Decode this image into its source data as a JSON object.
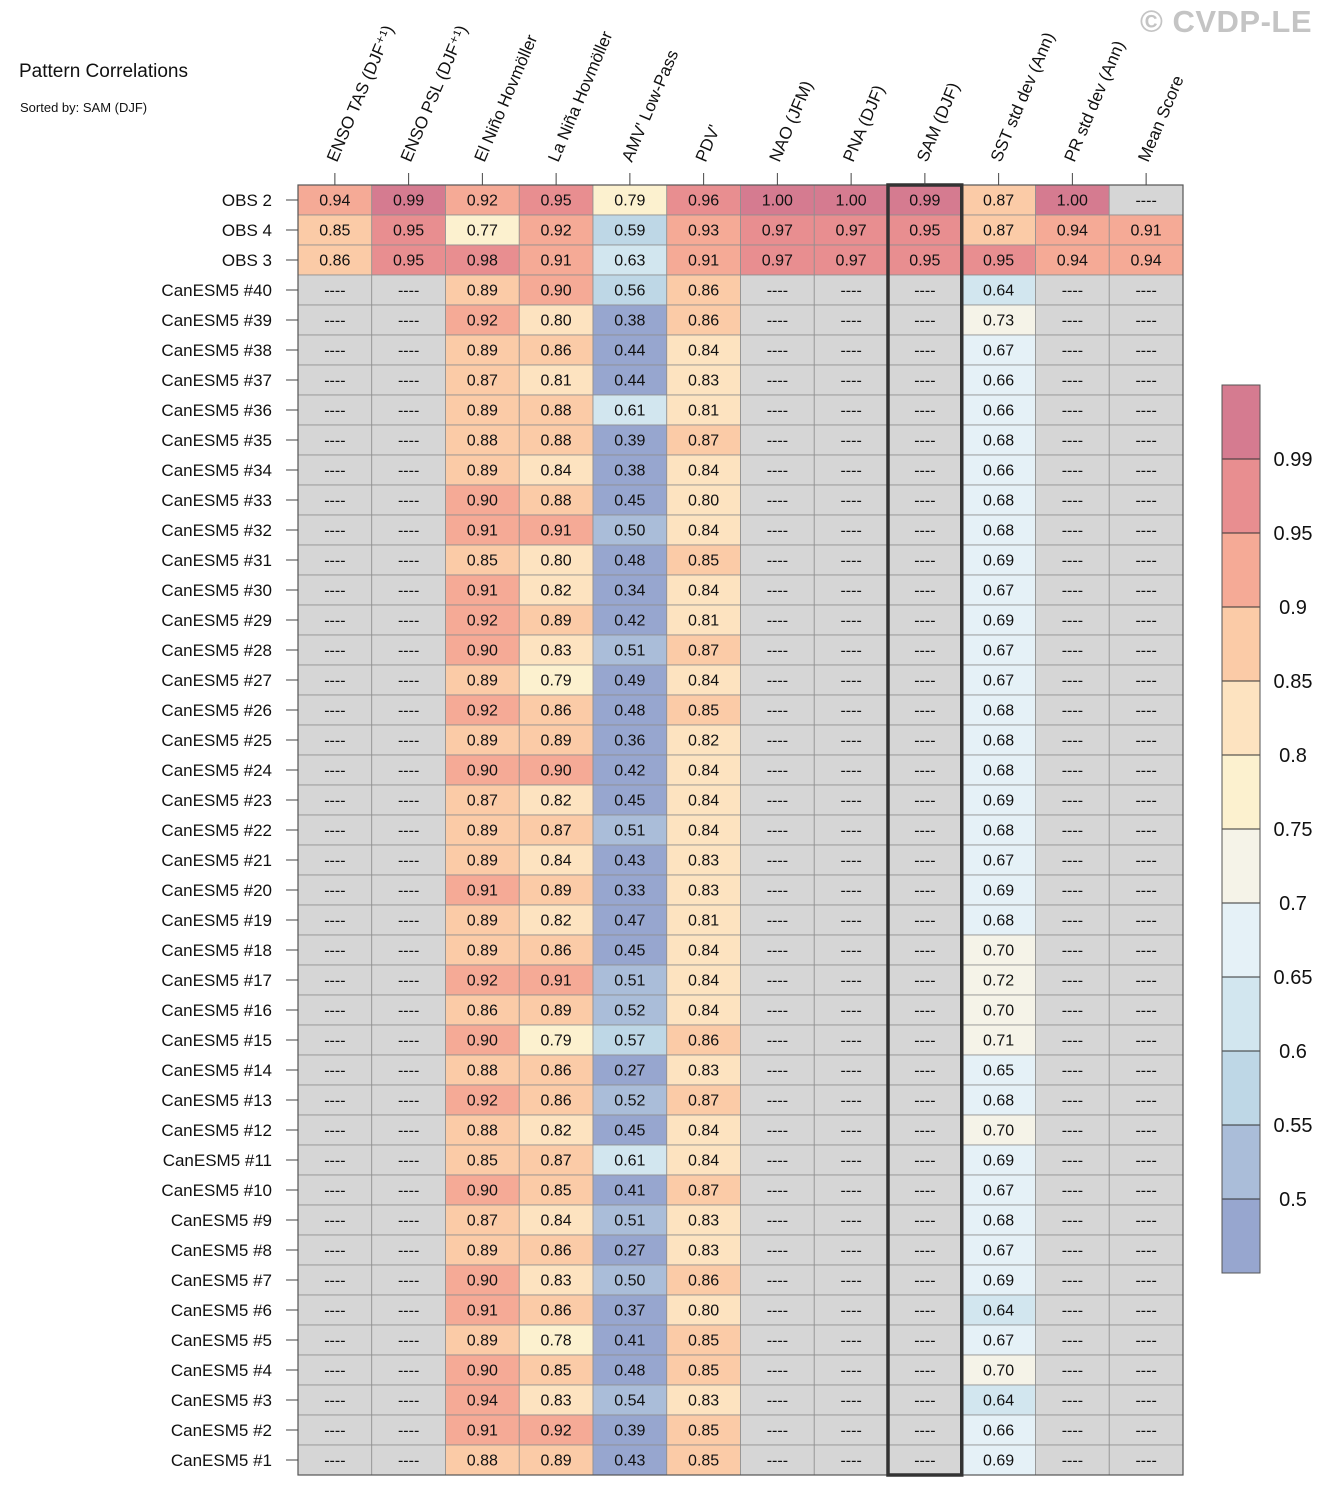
{
  "watermark": "© CVDP-LE",
  "chart_data": {
    "type": "heatmap",
    "title": "Pattern Correlations",
    "subtitle": "Sorted by: SAM (DJF)",
    "highlight_column": "SAM (DJF)",
    "columns": [
      "ENSO TAS (DJF⁺¹)",
      "ENSO PSL (DJF⁺¹)",
      "El Niño Hovmöller",
      "La Niña Hovmöller",
      "AMV' Low-Pass",
      "PDV'",
      "NAO (JFM)",
      "PNA (DJF)",
      "SAM (DJF)",
      "SST std dev (Ann)",
      "PR std dev (Ann)",
      "Mean Score"
    ],
    "rows": [
      "OBS 2",
      "OBS 4",
      "OBS 3",
      "CanESM5 #40",
      "CanESM5 #39",
      "CanESM5 #38",
      "CanESM5 #37",
      "CanESM5 #36",
      "CanESM5 #35",
      "CanESM5 #34",
      "CanESM5 #33",
      "CanESM5 #32",
      "CanESM5 #31",
      "CanESM5 #30",
      "CanESM5 #29",
      "CanESM5 #28",
      "CanESM5 #27",
      "CanESM5 #26",
      "CanESM5 #25",
      "CanESM5 #24",
      "CanESM5 #23",
      "CanESM5 #22",
      "CanESM5 #21",
      "CanESM5 #20",
      "CanESM5 #19",
      "CanESM5 #18",
      "CanESM5 #17",
      "CanESM5 #16",
      "CanESM5 #15",
      "CanESM5 #14",
      "CanESM5 #13",
      "CanESM5 #12",
      "CanESM5 #11",
      "CanESM5 #10",
      "CanESM5 #9",
      "CanESM5 #8",
      "CanESM5 #7",
      "CanESM5 #6",
      "CanESM5 #5",
      "CanESM5 #4",
      "CanESM5 #3",
      "CanESM5 #2",
      "CanESM5 #1"
    ],
    "missing_label": "----",
    "values": [
      [
        0.94,
        0.99,
        0.92,
        0.95,
        0.79,
        0.96,
        1.0,
        1.0,
        0.99,
        0.87,
        1.0,
        null
      ],
      [
        0.85,
        0.95,
        0.77,
        0.92,
        0.59,
        0.93,
        0.97,
        0.97,
        0.95,
        0.87,
        0.94,
        0.91
      ],
      [
        0.86,
        0.95,
        0.98,
        0.91,
        0.63,
        0.91,
        0.97,
        0.97,
        0.95,
        0.95,
        0.94,
        0.94
      ],
      [
        null,
        null,
        0.89,
        0.9,
        0.56,
        0.86,
        null,
        null,
        null,
        0.64,
        null,
        null
      ],
      [
        null,
        null,
        0.92,
        0.8,
        0.38,
        0.86,
        null,
        null,
        null,
        0.73,
        null,
        null
      ],
      [
        null,
        null,
        0.89,
        0.86,
        0.44,
        0.84,
        null,
        null,
        null,
        0.67,
        null,
        null
      ],
      [
        null,
        null,
        0.87,
        0.81,
        0.44,
        0.83,
        null,
        null,
        null,
        0.66,
        null,
        null
      ],
      [
        null,
        null,
        0.89,
        0.88,
        0.61,
        0.81,
        null,
        null,
        null,
        0.66,
        null,
        null
      ],
      [
        null,
        null,
        0.88,
        0.88,
        0.39,
        0.87,
        null,
        null,
        null,
        0.68,
        null,
        null
      ],
      [
        null,
        null,
        0.89,
        0.84,
        0.38,
        0.84,
        null,
        null,
        null,
        0.66,
        null,
        null
      ],
      [
        null,
        null,
        0.9,
        0.88,
        0.45,
        0.8,
        null,
        null,
        null,
        0.68,
        null,
        null
      ],
      [
        null,
        null,
        0.91,
        0.91,
        0.5,
        0.84,
        null,
        null,
        null,
        0.68,
        null,
        null
      ],
      [
        null,
        null,
        0.85,
        0.8,
        0.48,
        0.85,
        null,
        null,
        null,
        0.69,
        null,
        null
      ],
      [
        null,
        null,
        0.91,
        0.82,
        0.34,
        0.84,
        null,
        null,
        null,
        0.67,
        null,
        null
      ],
      [
        null,
        null,
        0.92,
        0.89,
        0.42,
        0.81,
        null,
        null,
        null,
        0.69,
        null,
        null
      ],
      [
        null,
        null,
        0.9,
        0.83,
        0.51,
        0.87,
        null,
        null,
        null,
        0.67,
        null,
        null
      ],
      [
        null,
        null,
        0.89,
        0.79,
        0.49,
        0.84,
        null,
        null,
        null,
        0.67,
        null,
        null
      ],
      [
        null,
        null,
        0.92,
        0.86,
        0.48,
        0.85,
        null,
        null,
        null,
        0.68,
        null,
        null
      ],
      [
        null,
        null,
        0.89,
        0.89,
        0.36,
        0.82,
        null,
        null,
        null,
        0.68,
        null,
        null
      ],
      [
        null,
        null,
        0.9,
        0.9,
        0.42,
        0.84,
        null,
        null,
        null,
        0.68,
        null,
        null
      ],
      [
        null,
        null,
        0.87,
        0.82,
        0.45,
        0.84,
        null,
        null,
        null,
        0.69,
        null,
        null
      ],
      [
        null,
        null,
        0.89,
        0.87,
        0.51,
        0.84,
        null,
        null,
        null,
        0.68,
        null,
        null
      ],
      [
        null,
        null,
        0.89,
        0.84,
        0.43,
        0.83,
        null,
        null,
        null,
        0.67,
        null,
        null
      ],
      [
        null,
        null,
        0.91,
        0.89,
        0.33,
        0.83,
        null,
        null,
        null,
        0.69,
        null,
        null
      ],
      [
        null,
        null,
        0.89,
        0.82,
        0.47,
        0.81,
        null,
        null,
        null,
        0.68,
        null,
        null
      ],
      [
        null,
        null,
        0.89,
        0.86,
        0.45,
        0.84,
        null,
        null,
        null,
        0.7,
        null,
        null
      ],
      [
        null,
        null,
        0.92,
        0.91,
        0.51,
        0.84,
        null,
        null,
        null,
        0.72,
        null,
        null
      ],
      [
        null,
        null,
        0.86,
        0.89,
        0.52,
        0.84,
        null,
        null,
        null,
        0.7,
        null,
        null
      ],
      [
        null,
        null,
        0.9,
        0.79,
        0.57,
        0.86,
        null,
        null,
        null,
        0.71,
        null,
        null
      ],
      [
        null,
        null,
        0.88,
        0.86,
        0.27,
        0.83,
        null,
        null,
        null,
        0.65,
        null,
        null
      ],
      [
        null,
        null,
        0.92,
        0.86,
        0.52,
        0.87,
        null,
        null,
        null,
        0.68,
        null,
        null
      ],
      [
        null,
        null,
        0.88,
        0.82,
        0.45,
        0.84,
        null,
        null,
        null,
        0.7,
        null,
        null
      ],
      [
        null,
        null,
        0.85,
        0.87,
        0.61,
        0.84,
        null,
        null,
        null,
        0.69,
        null,
        null
      ],
      [
        null,
        null,
        0.9,
        0.85,
        0.41,
        0.87,
        null,
        null,
        null,
        0.67,
        null,
        null
      ],
      [
        null,
        null,
        0.87,
        0.84,
        0.51,
        0.83,
        null,
        null,
        null,
        0.68,
        null,
        null
      ],
      [
        null,
        null,
        0.89,
        0.86,
        0.27,
        0.83,
        null,
        null,
        null,
        0.67,
        null,
        null
      ],
      [
        null,
        null,
        0.9,
        0.83,
        0.5,
        0.86,
        null,
        null,
        null,
        0.69,
        null,
        null
      ],
      [
        null,
        null,
        0.91,
        0.86,
        0.37,
        0.8,
        null,
        null,
        null,
        0.64,
        null,
        null
      ],
      [
        null,
        null,
        0.89,
        0.78,
        0.41,
        0.85,
        null,
        null,
        null,
        0.67,
        null,
        null
      ],
      [
        null,
        null,
        0.9,
        0.85,
        0.48,
        0.85,
        null,
        null,
        null,
        0.7,
        null,
        null
      ],
      [
        null,
        null,
        0.94,
        0.83,
        0.54,
        0.83,
        null,
        null,
        null,
        0.64,
        null,
        null
      ],
      [
        null,
        null,
        0.91,
        0.92,
        0.39,
        0.85,
        null,
        null,
        null,
        0.66,
        null,
        null
      ],
      [
        null,
        null,
        0.88,
        0.89,
        0.43,
        0.85,
        null,
        null,
        null,
        0.69,
        null,
        null
      ]
    ],
    "colorbar": {
      "levels": [
        0.5,
        0.55,
        0.6,
        0.65,
        0.7,
        0.75,
        0.8,
        0.85,
        0.9,
        0.95,
        0.99
      ],
      "labels": [
        "0.5",
        "0.55",
        "0.6",
        "0.65",
        "0.7",
        "0.75",
        "0.8",
        "0.85",
        "0.9",
        "0.95",
        "0.99"
      ],
      "colors": [
        "#97a6cf",
        "#aabdd9",
        "#bed7e6",
        "#d2e6ef",
        "#e5f1f7",
        "#f5f3e8",
        "#fcf1cf",
        "#fde3c0",
        "#fbcba7",
        "#f5aa96",
        "#e88e90",
        "#d57b90"
      ],
      "missing_color": "#d6d6d6"
    }
  }
}
